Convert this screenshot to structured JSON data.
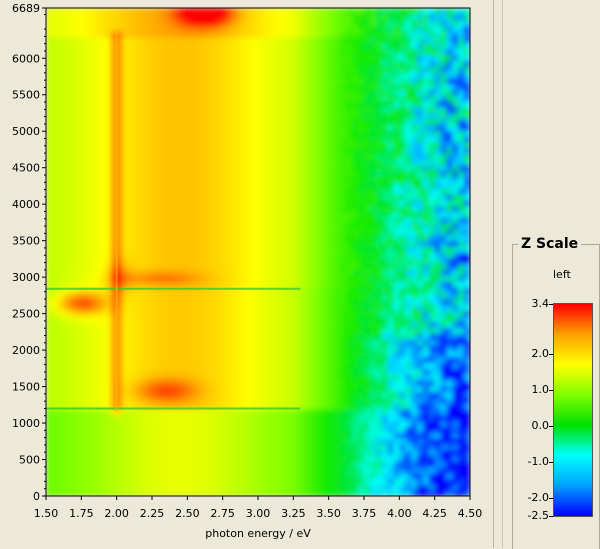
{
  "chart_data": {
    "type": "heatmap",
    "title": "",
    "xlabel": "photon energy / eV",
    "ylabel": "",
    "xlim": [
      1.5,
      4.5
    ],
    "ylim": [
      0,
      6689
    ],
    "x_ticks": [
      "1.50",
      "1.75",
      "2.00",
      "2.25",
      "2.50",
      "2.75",
      "3.00",
      "3.25",
      "3.50",
      "3.75",
      "4.00",
      "4.25",
      "4.50"
    ],
    "y_ticks": [
      "0",
      "500",
      "1000",
      "1500",
      "2000",
      "2500",
      "3000",
      "3500",
      "4000",
      "4500",
      "5000",
      "5500",
      "6000",
      "6689"
    ],
    "z_range": [
      -2.5,
      3.4
    ],
    "horizontal_discontinuities": [
      1200,
      2840
    ],
    "vertical_feature_x": 2.0,
    "colorbar": {
      "title": "Z Scale",
      "subtitle": "left",
      "labels": [
        "3.4",
        "2.0",
        "1.0",
        "0.0",
        "-1.0",
        "-2.0",
        "-2.5"
      ],
      "values": [
        3.4,
        2.0,
        1.0,
        0.0,
        -1.0,
        -2.0,
        -2.5
      ],
      "colors": [
        "#0000ff",
        "#00a0ff",
        "#00ffff",
        "#00e000",
        "#80ff00",
        "#ffff00",
        "#ffa000",
        "#ff0000"
      ]
    }
  }
}
